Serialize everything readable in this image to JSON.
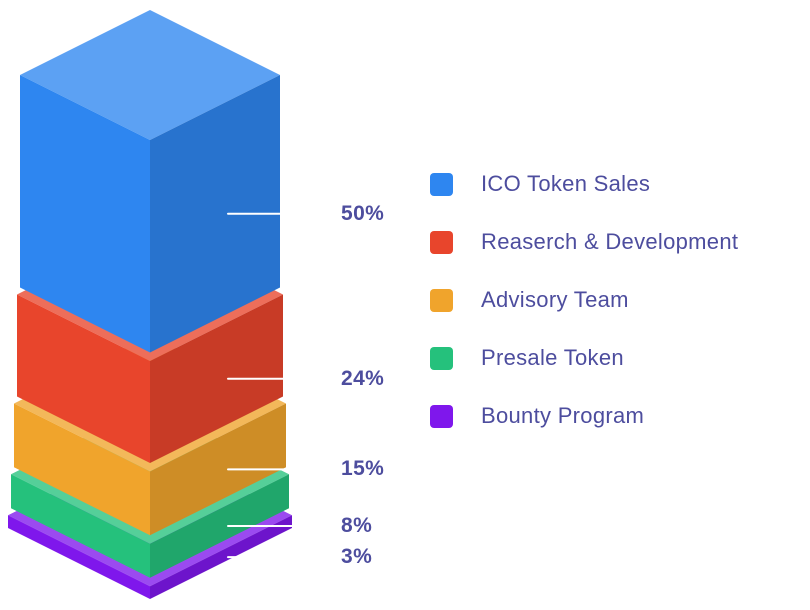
{
  "background_color": "#ffffff",
  "chart_data": {
    "type": "stacked-bar-3d",
    "title": "",
    "unit": "%",
    "legend_position": "right",
    "label_color": "#4d4d9e",
    "callout_line_color": "#ffffff",
    "segments": [
      {
        "label": "ICO Token Sales",
        "percent": 50,
        "percent_label": "50%",
        "color": "#2e86f0"
      },
      {
        "label": "Reaserch & Development",
        "percent": 24,
        "percent_label": "24%",
        "color": "#e8452c"
      },
      {
        "label": "Advisory Team",
        "percent": 15,
        "percent_label": "15%",
        "color": "#f0a42c"
      },
      {
        "label": "Presale Token",
        "percent": 8,
        "percent_label": "8%",
        "color": "#25c17c"
      },
      {
        "label": "Bounty Program",
        "percent": 3,
        "percent_label": "3%",
        "color": "#7f17ec"
      }
    ]
  }
}
